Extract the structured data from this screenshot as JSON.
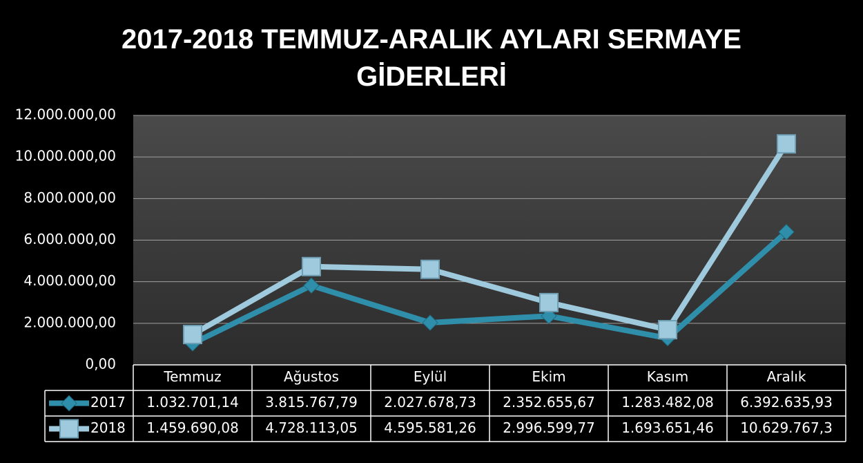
{
  "chart_data": {
    "type": "line",
    "title": "2017-2018 TEMMUZ-ARALIK AYLARI SERMAYE GİDERLERİ",
    "categories": [
      "Temmuz",
      "Ağustos",
      "Eylül",
      "Ekim",
      "Kasım",
      "Aralık"
    ],
    "series": [
      {
        "name": "2017",
        "color": "#2f8fab",
        "marker": "diamond",
        "values": [
          1032701.14,
          3815767.79,
          2027678.73,
          2352655.67,
          1283482.08,
          6392635.93
        ],
        "value_labels": [
          "1.032.701,14",
          "3.815.767,79",
          "2.027.678,73",
          "2.352.655,67",
          "1.283.482,08",
          "6.392.635,93"
        ]
      },
      {
        "name": "2018",
        "color": "#9fc9dc",
        "marker": "square",
        "values": [
          1459690.08,
          4728113.05,
          4595581.26,
          2996599.77,
          1693651.46,
          10629767.3
        ],
        "value_labels": [
          "1.459.690,08",
          "4.728.113,05",
          "4.595.581,26",
          "2.996.599,77",
          "1.693.651,46",
          "10.629.767,3"
        ]
      }
    ],
    "ylim": [
      0,
      12000000
    ],
    "yticks": [
      {
        "value": 0,
        "label": "0,00"
      },
      {
        "value": 2000000,
        "label": "2.000.000,00"
      },
      {
        "value": 4000000,
        "label": "4.000.000,00"
      },
      {
        "value": 6000000,
        "label": "6.000.000,00"
      },
      {
        "value": 8000000,
        "label": "8.000.000,00"
      },
      {
        "value": 10000000,
        "label": "10.000.000,00"
      },
      {
        "value": 12000000,
        "label": "12.000.000,00"
      }
    ],
    "grid": true,
    "legend": "table"
  }
}
